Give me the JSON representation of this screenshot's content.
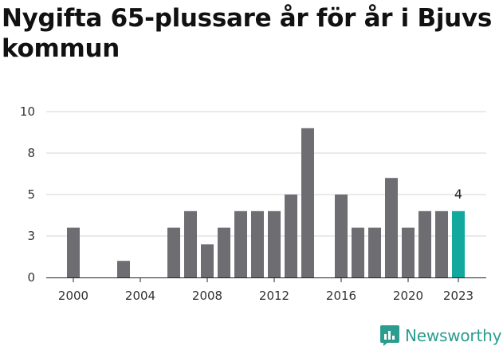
{
  "title": "Nygifta 65-plussare år för år i Bjuvs kommun",
  "brand": {
    "name": "Newsworthy",
    "icon": "newsworthy-logo-icon"
  },
  "colors": {
    "bar": "#6d6d72",
    "highlight": "#13a89e",
    "grid": "#d4d4d4",
    "axis": "#222222",
    "brand": "#2a9d8f"
  },
  "chart_data": {
    "type": "bar",
    "title": "Nygifta 65-plussare år för år i Bjuvs kommun",
    "xlabel": "",
    "ylabel": "",
    "ylim": [
      0,
      10
    ],
    "y_ticks": [
      {
        "value": 0,
        "label": "0"
      },
      {
        "value": 2.5,
        "label": "3"
      },
      {
        "value": 5,
        "label": "5"
      },
      {
        "value": 7.5,
        "label": "8"
      },
      {
        "value": 10,
        "label": "10"
      }
    ],
    "x_ticks": [
      "2000",
      "2004",
      "2008",
      "2012",
      "2016",
      "2020",
      "2023"
    ],
    "categories": [
      "2000",
      "2001",
      "2002",
      "2003",
      "2004",
      "2005",
      "2006",
      "2007",
      "2008",
      "2009",
      "2010",
      "2011",
      "2012",
      "2013",
      "2014",
      "2015",
      "2016",
      "2017",
      "2018",
      "2019",
      "2020",
      "2021",
      "2022",
      "2023"
    ],
    "values": [
      3,
      0,
      0,
      1,
      0,
      0,
      3,
      4,
      2,
      3,
      4,
      4,
      4,
      5,
      9,
      0,
      5,
      3,
      3,
      6,
      3,
      4,
      4,
      4
    ],
    "highlight": {
      "category": "2023",
      "label": "4"
    }
  }
}
